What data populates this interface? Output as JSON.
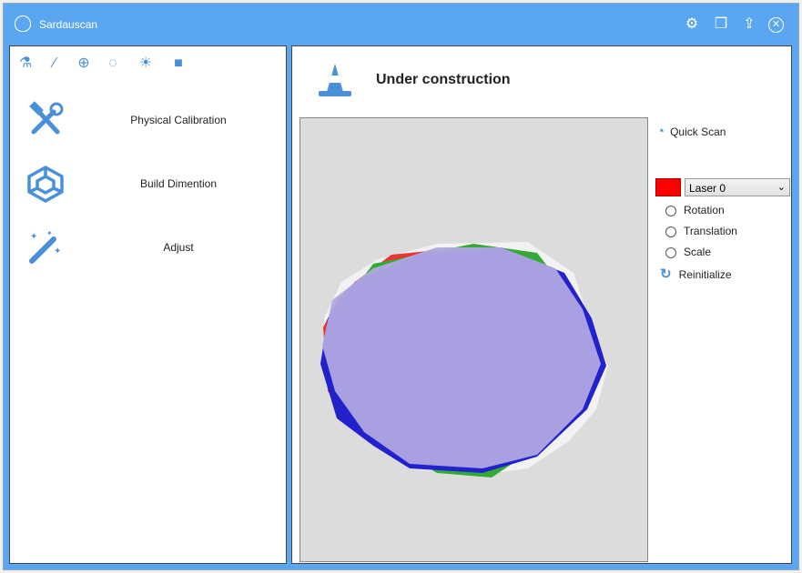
{
  "window": {
    "title": "Sardauscan",
    "title_buttons": [
      "settings-icon",
      "restore-icon",
      "upload-icon",
      "close-icon"
    ]
  },
  "toolbar": {
    "icons": [
      "flask-icon",
      "magic-wand-icon",
      "crosshair-icon",
      "spinner-icon",
      "sun-icon",
      "video-camera-icon"
    ]
  },
  "menu": {
    "items": [
      {
        "label": "Physical Calibration",
        "icon": "tools-icon"
      },
      {
        "label": "Build Dimention",
        "icon": "cube-icon"
      },
      {
        "label": "Adjust",
        "icon": "magic-wand-icon"
      }
    ]
  },
  "main": {
    "heading": "Under construction",
    "heading_icon": "traffic-cone-icon"
  },
  "side": {
    "quick_scan": "Quick Scan",
    "laser_color": "#ff0000",
    "laser_select": "Laser 0",
    "options": [
      "Rotation",
      "Translation",
      "Scale"
    ],
    "reinitialize": "Reinitialize"
  },
  "colors": {
    "accent": "#5aa6f0",
    "icon": "#4a90d9"
  }
}
